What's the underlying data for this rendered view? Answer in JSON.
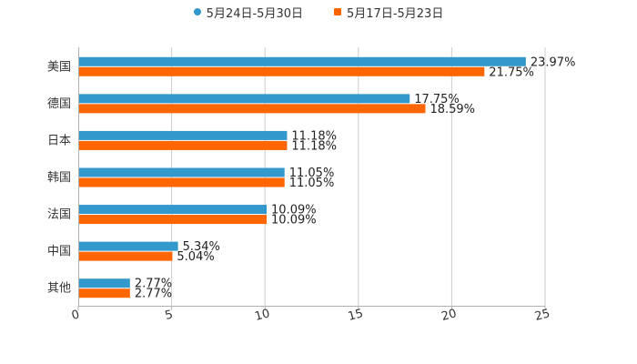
{
  "chart_data": {
    "type": "bar",
    "orientation": "horizontal",
    "categories": [
      "美国",
      "德国",
      "日本",
      "韩国",
      "法国",
      "中国",
      "其他"
    ],
    "series": [
      {
        "name": "5月24日-5月30日",
        "color": "#3399cc",
        "marker": "circle",
        "values": [
          23.97,
          17.75,
          11.18,
          11.05,
          10.09,
          5.34,
          2.77
        ],
        "labels": [
          "23.97%",
          "17.75%",
          "11.18%",
          "11.05%",
          "10.09%",
          "5.34%",
          "2.77%"
        ]
      },
      {
        "name": "5月17日-5月23日",
        "color": "#ff6600",
        "marker": "square",
        "values": [
          21.75,
          18.59,
          11.18,
          11.05,
          10.09,
          5.04,
          2.77
        ],
        "labels": [
          "21.75%",
          "18.59%",
          "11.18%",
          "11.05%",
          "10.09%",
          "5.04%",
          "2.77%"
        ]
      }
    ],
    "x_ticks": [
      "0",
      "5",
      "10",
      "15",
      "20",
      "25"
    ],
    "xlim": [
      0,
      25
    ],
    "grid": true,
    "legend_position": "top-center"
  }
}
